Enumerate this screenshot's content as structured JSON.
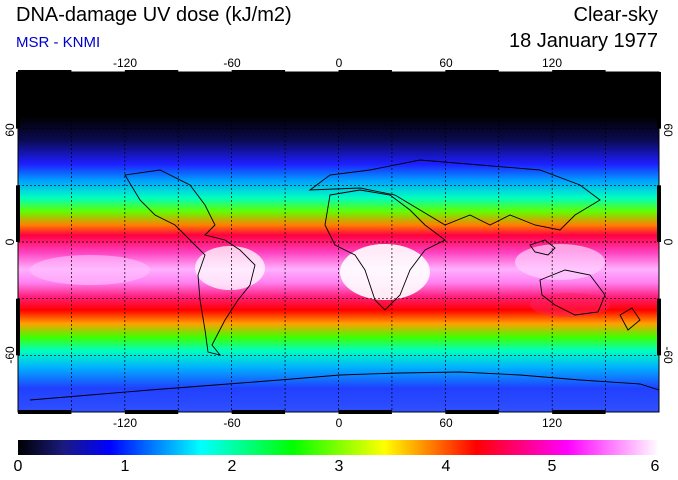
{
  "header": {
    "title": "DNA-damage UV dose (kJ/m2)",
    "source": "MSR - KNMI",
    "condition": "Clear-sky",
    "date": "18 January 1977"
  },
  "colors": {
    "source_text": "#0000cc",
    "colormap": [
      "#000000",
      "#1a1a80",
      "#0000ff",
      "#0080ff",
      "#00ffff",
      "#00ff80",
      "#00ff00",
      "#80ff00",
      "#ffff00",
      "#ff8000",
      "#ff0000",
      "#ff0080",
      "#ff00ff",
      "#ff80ff",
      "#ffffff"
    ]
  },
  "map": {
    "lon_ticks": [
      "-120",
      "-60",
      "0",
      "60",
      "120"
    ],
    "lat_ticks_left": [
      "60",
      "0",
      "-60"
    ],
    "lat_ticks_right": [
      "60",
      "0",
      "-60"
    ]
  },
  "colorbar": {
    "labels": [
      "0",
      "1",
      "2",
      "3",
      "4",
      "5",
      "6"
    ]
  }
}
